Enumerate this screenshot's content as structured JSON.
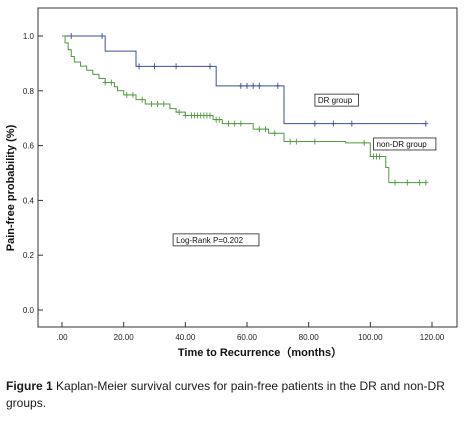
{
  "chart_data": {
    "type": "line",
    "subtype": "kaplan-meier-step",
    "xlabel": "Time to Recurrence（months）",
    "ylabel": "Pain-free probability (%)",
    "xlim": [
      0,
      120
    ],
    "ylim": [
      0,
      1.0
    ],
    "x_ticks": [
      0,
      20,
      40,
      60,
      80,
      100,
      120
    ],
    "x_tick_labels": [
      ".00",
      "20.00",
      "40.00",
      "60.00",
      "80.00",
      "100.00",
      "120.00"
    ],
    "y_ticks": [
      0,
      0.2,
      0.4,
      0.6,
      0.8,
      1.0
    ],
    "y_tick_labels": [
      "0.0",
      "0.2",
      "0.4",
      "0.6",
      "0.8",
      "1.0"
    ],
    "grid": false,
    "annotation": "Log-Rank  P=0.202",
    "series": [
      {
        "name": "DR group",
        "color": "#3a4fa0",
        "steps": [
          [
            0,
            1.0
          ],
          [
            14,
            0.945
          ],
          [
            24,
            0.889
          ],
          [
            50,
            0.818
          ],
          [
            72,
            0.68
          ],
          [
            118,
            0.68
          ]
        ],
        "censored": [
          [
            3,
            1.0
          ],
          [
            13,
            1.0
          ],
          [
            25,
            0.889
          ],
          [
            30,
            0.889
          ],
          [
            37,
            0.889
          ],
          [
            48,
            0.889
          ],
          [
            58,
            0.818
          ],
          [
            60,
            0.818
          ],
          [
            62,
            0.818
          ],
          [
            64,
            0.818
          ],
          [
            70,
            0.818
          ],
          [
            82,
            0.68
          ],
          [
            88,
            0.68
          ],
          [
            94,
            0.68
          ],
          [
            118,
            0.68
          ]
        ]
      },
      {
        "name": "non-DR group",
        "color": "#4e9a3c",
        "steps": [
          [
            0,
            1.0
          ],
          [
            1,
            0.975
          ],
          [
            2,
            0.95
          ],
          [
            3,
            0.925
          ],
          [
            4,
            0.905
          ],
          [
            6,
            0.89
          ],
          [
            8,
            0.875
          ],
          [
            10,
            0.86
          ],
          [
            12,
            0.845
          ],
          [
            14,
            0.83
          ],
          [
            17,
            0.815
          ],
          [
            18,
            0.8
          ],
          [
            20,
            0.785
          ],
          [
            24,
            0.768
          ],
          [
            27,
            0.752
          ],
          [
            35,
            0.735
          ],
          [
            37,
            0.722
          ],
          [
            40,
            0.71
          ],
          [
            49,
            0.695
          ],
          [
            52,
            0.68
          ],
          [
            62,
            0.66
          ],
          [
            67,
            0.645
          ],
          [
            72,
            0.615
          ],
          [
            92,
            0.61
          ],
          [
            100,
            0.56
          ],
          [
            105,
            0.52
          ],
          [
            106,
            0.465
          ],
          [
            118,
            0.465
          ]
        ],
        "censored": [
          [
            14,
            0.83
          ],
          [
            16,
            0.83
          ],
          [
            21,
            0.785
          ],
          [
            23,
            0.785
          ],
          [
            26,
            0.768
          ],
          [
            29,
            0.752
          ],
          [
            31,
            0.752
          ],
          [
            33,
            0.752
          ],
          [
            38,
            0.722
          ],
          [
            40,
            0.71
          ],
          [
            42,
            0.71
          ],
          [
            43,
            0.71
          ],
          [
            44,
            0.71
          ],
          [
            45,
            0.71
          ],
          [
            46,
            0.71
          ],
          [
            47,
            0.71
          ],
          [
            48,
            0.71
          ],
          [
            50,
            0.695
          ],
          [
            51,
            0.695
          ],
          [
            54,
            0.68
          ],
          [
            56,
            0.68
          ],
          [
            58,
            0.68
          ],
          [
            64,
            0.66
          ],
          [
            66,
            0.66
          ],
          [
            69,
            0.645
          ],
          [
            74,
            0.615
          ],
          [
            76,
            0.615
          ],
          [
            82,
            0.615
          ],
          [
            98,
            0.61
          ],
          [
            101,
            0.56
          ],
          [
            102,
            0.56
          ],
          [
            103,
            0.56
          ],
          [
            108,
            0.465
          ],
          [
            112,
            0.465
          ],
          [
            116,
            0.465
          ],
          [
            118,
            0.465
          ]
        ]
      }
    ],
    "legend_labels": [
      {
        "series": 0,
        "text": "DR group",
        "at": [
          83,
          0.755
        ]
      },
      {
        "series": 1,
        "text": "non-DR group",
        "at": [
          102,
          0.595
        ]
      }
    ]
  },
  "caption": {
    "label": "Figure 1",
    "text": " Kaplan-Meier survival curves for pain-free patients in the DR and non-DR groups."
  }
}
